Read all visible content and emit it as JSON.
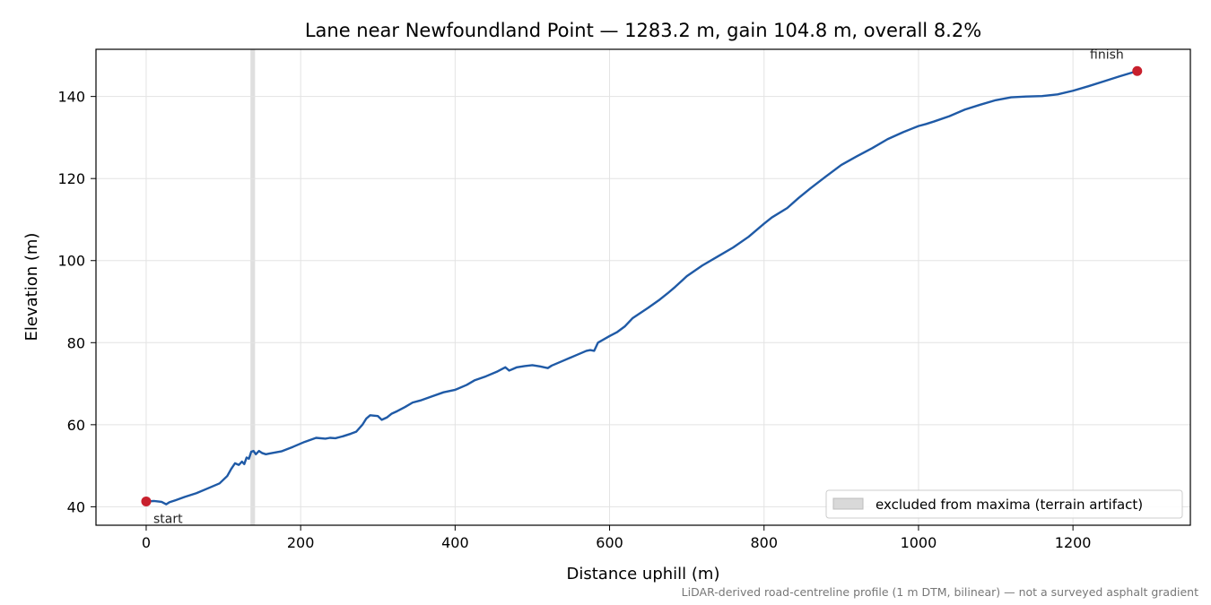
{
  "chart_data": {
    "type": "line",
    "title": "Lane near Newfoundland Point — 1283.2 m, gain 104.8 m, overall 8.2%",
    "xlabel": "Distance uphill (m)",
    "ylabel": "Elevation (m)",
    "xlim": [
      -65,
      1352
    ],
    "ylim": [
      35.5,
      151.5
    ],
    "xticks": [
      0,
      200,
      400,
      600,
      800,
      1000,
      1200
    ],
    "yticks": [
      40,
      60,
      80,
      100,
      120,
      140
    ],
    "grid": true,
    "legend_position": "lower-right",
    "excluded_band": {
      "x_start": 135,
      "x_end": 141,
      "label": "excluded from maxima (terrain artifact)"
    },
    "series": [
      {
        "color": "#1f5aa6",
        "x": [
          0,
          10,
          20,
          26,
          30,
          38,
          50,
          65,
          80,
          95,
          105,
          110,
          115,
          120,
          124,
          127,
          130,
          133,
          136,
          139,
          142,
          146,
          150,
          155,
          160,
          175,
          190,
          205,
          220,
          232,
          238,
          245,
          255,
          265,
          272,
          280,
          285,
          290,
          300,
          305,
          312,
          318,
          325,
          335,
          345,
          355,
          370,
          385,
          400,
          415,
          425,
          440,
          455,
          465,
          470,
          475,
          480,
          490,
          500,
          510,
          520,
          525,
          540,
          555,
          570,
          575,
          580,
          585,
          600,
          610,
          620,
          630,
          650,
          665,
          675,
          685,
          700,
          720,
          740,
          760,
          780,
          800,
          810,
          830,
          845,
          860,
          880,
          900,
          920,
          940,
          960,
          980,
          1000,
          1010,
          1020,
          1040,
          1060,
          1080,
          1100,
          1120,
          1140,
          1160,
          1180,
          1200,
          1220,
          1240,
          1260,
          1283.2
        ],
        "y": [
          41.3,
          41.4,
          41.2,
          40.6,
          41.1,
          41.6,
          42.4,
          43.3,
          44.5,
          45.7,
          47.5,
          49.2,
          50.6,
          50.2,
          51.0,
          50.4,
          52.0,
          51.7,
          53.4,
          53.6,
          52.8,
          53.6,
          53.1,
          52.8,
          53.0,
          53.5,
          54.6,
          55.8,
          56.8,
          56.6,
          56.8,
          56.7,
          57.2,
          57.8,
          58.3,
          60.0,
          61.5,
          62.3,
          62.1,
          61.2,
          61.8,
          62.7,
          63.3,
          64.3,
          65.4,
          65.9,
          66.9,
          67.9,
          68.5,
          69.7,
          70.8,
          71.8,
          73.0,
          74.0,
          73.2,
          73.6,
          74.0,
          74.3,
          74.5,
          74.2,
          73.8,
          74.4,
          75.6,
          76.8,
          78.0,
          78.2,
          78.0,
          80.0,
          81.6,
          82.6,
          84.0,
          86.0,
          88.5,
          90.5,
          92.0,
          93.6,
          96.2,
          98.8,
          101.0,
          103.2,
          105.8,
          109.0,
          110.5,
          112.8,
          115.3,
          117.6,
          120.5,
          123.3,
          125.4,
          127.4,
          129.6,
          131.3,
          132.8,
          133.3,
          133.9,
          135.2,
          136.8,
          138.0,
          139.1,
          139.8,
          140.0,
          140.1,
          140.5,
          141.4,
          142.5,
          143.7,
          144.9,
          146.2
        ]
      }
    ],
    "markers": [
      {
        "x": 0,
        "y": 41.3,
        "label": "start",
        "color": "#c8202d"
      },
      {
        "x": 1283.2,
        "y": 146.2,
        "label": "finish",
        "color": "#c8202d"
      }
    ],
    "footnote": "LiDAR-derived road-centreline profile (1 m DTM, bilinear) — not a surveyed asphalt gradient"
  }
}
